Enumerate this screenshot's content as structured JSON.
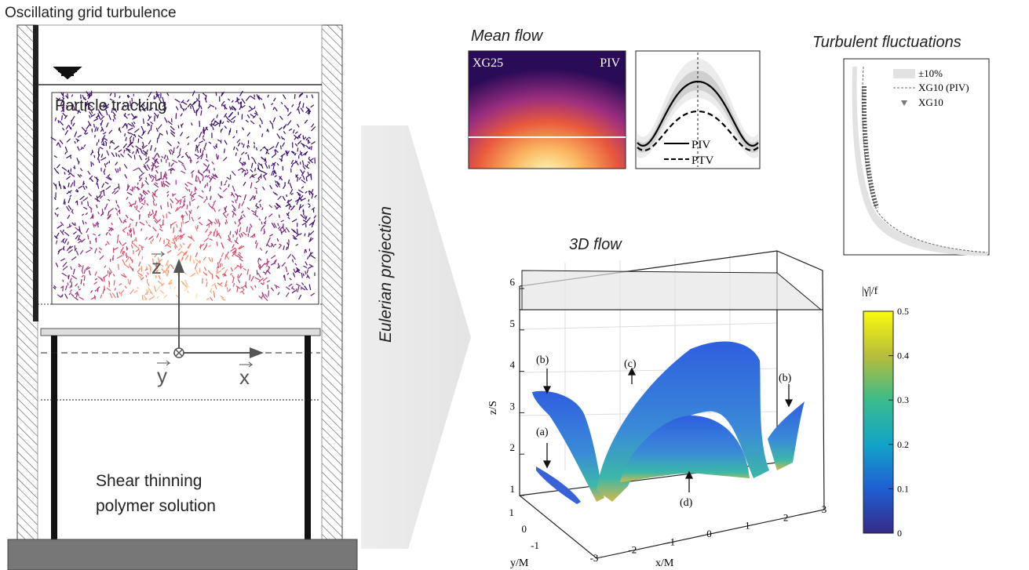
{
  "title": "Oscillating grid turbulence",
  "tank": {
    "particle_label": "Particle tracking",
    "fluid_label": [
      "Shear thinning",
      "polymer solution"
    ],
    "axes": {
      "z": "z",
      "y": "y",
      "x": "x"
    }
  },
  "arrow_label": "Eulerian projection",
  "mean_flow": {
    "title": "Mean flow",
    "map_labels": [
      "XG25",
      "PIV"
    ],
    "legend": [
      "PIV",
      "PTV"
    ]
  },
  "turbulent_fluctuations": {
    "title": "Turbulent fluctuations",
    "legend": [
      "±10%",
      "XG10 (PIV)",
      "XG10"
    ]
  },
  "flow_3d": {
    "title": "3D flow",
    "z_label": "z/S",
    "y_label": "y/M",
    "x_label": "x/M",
    "z_ticks": [
      1,
      2,
      3,
      4,
      5,
      6
    ],
    "y_ticks": [
      -1,
      0,
      1
    ],
    "x_ticks": [
      -3,
      -2,
      -1,
      0,
      1,
      2,
      3
    ],
    "annotations": [
      "(a)",
      "(b)",
      "(c)",
      "(d)",
      "(b)"
    ],
    "colorbar": {
      "label": "|γ̇|/f",
      "ticks": [
        0,
        0.1,
        0.2,
        0.3,
        0.4,
        0.5
      ]
    }
  }
}
